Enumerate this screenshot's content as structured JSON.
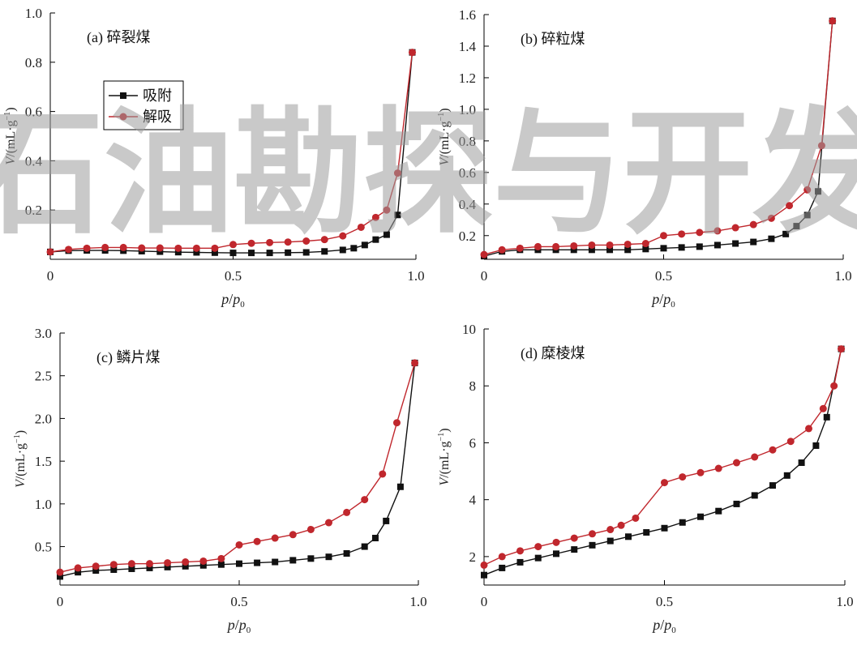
{
  "watermark": "石油勘探与开发",
  "panels": [
    {
      "id": "a",
      "title": "(a) 碎裂煤",
      "ylabel_main": "V/(mL·g",
      "ylabel_sup": "−1",
      "ylabel_end": ")",
      "xlabel_p": "p",
      "xlabel_slash": "/",
      "xlabel_p2": "p",
      "xlabel_sub": "0",
      "xlim": [
        0,
        1.0
      ],
      "ylim": [
        0,
        1.0
      ],
      "xticks": [
        {
          "v": 0,
          "label": "0"
        },
        {
          "v": 0.5,
          "label": "0.5"
        },
        {
          "v": 1.0,
          "label": "1.0"
        }
      ],
      "yticks": [
        {
          "v": 0.2,
          "label": "0.2"
        },
        {
          "v": 0.4,
          "label": "0.4"
        },
        {
          "v": 0.6,
          "label": "0.6"
        },
        {
          "v": 0.8,
          "label": "0.8"
        },
        {
          "v": 1.0,
          "label": "1.0"
        }
      ],
      "legend": [
        {
          "name": "吸附",
          "color": "#111111",
          "marker": "square"
        },
        {
          "name": "解吸",
          "color": "#c0272d",
          "marker": "circle"
        }
      ]
    },
    {
      "id": "b",
      "title": "(b) 碎粒煤",
      "ylabel_main": "V/(mL·g",
      "ylabel_sup": "−1",
      "ylabel_end": ")",
      "xlabel_p": "p",
      "xlabel_slash": "/",
      "xlabel_p2": "p",
      "xlabel_sub": "0",
      "xlim": [
        0,
        1.0
      ],
      "ylim": [
        0.05,
        1.6
      ],
      "xticks": [
        {
          "v": 0,
          "label": "0"
        },
        {
          "v": 0.5,
          "label": "0.5"
        },
        {
          "v": 1.0,
          "label": "1.0"
        }
      ],
      "yticks": [
        {
          "v": 0.2,
          "label": "0.2"
        },
        {
          "v": 0.4,
          "label": "0.4"
        },
        {
          "v": 0.6,
          "label": "0.6"
        },
        {
          "v": 0.8,
          "label": "0.8"
        },
        {
          "v": 1.0,
          "label": "1.0"
        },
        {
          "v": 1.2,
          "label": "1.2"
        },
        {
          "v": 1.4,
          "label": "1.4"
        },
        {
          "v": 1.6,
          "label": "1.6"
        }
      ]
    },
    {
      "id": "c",
      "title": "(c) 鳞片煤",
      "ylabel_main": "V/(mL·g",
      "ylabel_sup": "−1",
      "ylabel_end": ")",
      "xlabel_p": "p",
      "xlabel_slash": "/",
      "xlabel_p2": "p",
      "xlabel_sub": "0",
      "xlim": [
        0,
        1.0
      ],
      "ylim": [
        0.05,
        3.0
      ],
      "xticks": [
        {
          "v": 0,
          "label": "0"
        },
        {
          "v": 0.5,
          "label": "0.5"
        },
        {
          "v": 1.0,
          "label": "1.0"
        }
      ],
      "yticks": [
        {
          "v": 0.5,
          "label": "0.5"
        },
        {
          "v": 1.0,
          "label": "1.0"
        },
        {
          "v": 1.5,
          "label": "1.5"
        },
        {
          "v": 2.0,
          "label": "2.0"
        },
        {
          "v": 2.5,
          "label": "2.5"
        },
        {
          "v": 3.0,
          "label": "3.0"
        }
      ]
    },
    {
      "id": "d",
      "title": "(d) 糜棱煤",
      "ylabel_main": "V/(mL·g",
      "ylabel_sup": "−1",
      "ylabel_end": ")",
      "xlabel_p": "p",
      "xlabel_slash": "/",
      "xlabel_p2": "p",
      "xlabel_sub": "0",
      "xlim": [
        0,
        1.0
      ],
      "ylim": [
        1,
        10
      ],
      "xticks": [
        {
          "v": 0,
          "label": "0"
        },
        {
          "v": 0.5,
          "label": "0.5"
        },
        {
          "v": 1.0,
          "label": "1.0"
        }
      ],
      "yticks": [
        {
          "v": 2,
          "label": "2"
        },
        {
          "v": 4,
          "label": "4"
        },
        {
          "v": 6,
          "label": "6"
        },
        {
          "v": 8,
          "label": "8"
        },
        {
          "v": 10,
          "label": "10"
        }
      ]
    }
  ],
  "chart_data": [
    {
      "type": "line",
      "title": "(a) 碎裂煤",
      "xlabel": "p/p0",
      "ylabel": "V/(mL·g−1)",
      "xlim": [
        0,
        1.0
      ],
      "ylim": [
        0,
        1.0
      ],
      "legend": "upper-left",
      "series": [
        {
          "name": "吸附",
          "color": "#111111",
          "x": [
            0.0,
            0.05,
            0.1,
            0.15,
            0.2,
            0.25,
            0.3,
            0.35,
            0.4,
            0.45,
            0.5,
            0.55,
            0.6,
            0.65,
            0.7,
            0.75,
            0.8,
            0.83,
            0.86,
            0.89,
            0.92,
            0.95,
            0.99
          ],
          "y": [
            0.03,
            0.035,
            0.036,
            0.036,
            0.035,
            0.033,
            0.031,
            0.029,
            0.028,
            0.027,
            0.026,
            0.026,
            0.026,
            0.027,
            0.028,
            0.032,
            0.038,
            0.045,
            0.058,
            0.08,
            0.1,
            0.18,
            0.84
          ]
        },
        {
          "name": "解吸",
          "color": "#c0272d",
          "x": [
            0.0,
            0.05,
            0.1,
            0.15,
            0.2,
            0.25,
            0.3,
            0.35,
            0.4,
            0.45,
            0.5,
            0.55,
            0.6,
            0.65,
            0.7,
            0.75,
            0.8,
            0.85,
            0.89,
            0.92,
            0.95,
            0.99
          ],
          "y": [
            0.03,
            0.04,
            0.045,
            0.048,
            0.048,
            0.046,
            0.046,
            0.045,
            0.045,
            0.045,
            0.06,
            0.065,
            0.068,
            0.07,
            0.074,
            0.08,
            0.095,
            0.13,
            0.17,
            0.2,
            0.35,
            0.84
          ]
        }
      ]
    },
    {
      "type": "line",
      "title": "(b) 碎粒煤",
      "xlabel": "p/p0",
      "ylabel": "V/(mL·g−1)",
      "xlim": [
        0,
        1.0
      ],
      "ylim": [
        0.05,
        1.6
      ],
      "series": [
        {
          "name": "吸附",
          "color": "#111111",
          "x": [
            0.0,
            0.05,
            0.1,
            0.15,
            0.2,
            0.25,
            0.3,
            0.35,
            0.4,
            0.45,
            0.5,
            0.55,
            0.6,
            0.65,
            0.7,
            0.75,
            0.8,
            0.84,
            0.87,
            0.9,
            0.93,
            0.97
          ],
          "y": [
            0.07,
            0.1,
            0.11,
            0.11,
            0.11,
            0.11,
            0.11,
            0.11,
            0.11,
            0.115,
            0.12,
            0.125,
            0.13,
            0.14,
            0.15,
            0.16,
            0.18,
            0.21,
            0.26,
            0.33,
            0.48,
            1.56
          ]
        },
        {
          "name": "解吸",
          "color": "#c0272d",
          "x": [
            0.0,
            0.05,
            0.1,
            0.15,
            0.2,
            0.25,
            0.3,
            0.35,
            0.4,
            0.45,
            0.5,
            0.55,
            0.6,
            0.65,
            0.7,
            0.75,
            0.8,
            0.85,
            0.9,
            0.94,
            0.97
          ],
          "y": [
            0.08,
            0.11,
            0.12,
            0.13,
            0.13,
            0.135,
            0.14,
            0.14,
            0.145,
            0.15,
            0.2,
            0.21,
            0.22,
            0.23,
            0.25,
            0.27,
            0.31,
            0.39,
            0.49,
            0.77,
            1.56
          ]
        }
      ]
    },
    {
      "type": "line",
      "title": "(c) 鳞片煤",
      "xlabel": "p/p0",
      "ylabel": "V/(mL·g−1)",
      "xlim": [
        0,
        1.0
      ],
      "ylim": [
        0.05,
        3.0
      ],
      "series": [
        {
          "name": "吸附",
          "color": "#111111",
          "x": [
            0.0,
            0.05,
            0.1,
            0.15,
            0.2,
            0.25,
            0.3,
            0.35,
            0.4,
            0.45,
            0.5,
            0.55,
            0.6,
            0.65,
            0.7,
            0.75,
            0.8,
            0.85,
            0.88,
            0.91,
            0.95,
            0.99
          ],
          "y": [
            0.15,
            0.2,
            0.22,
            0.23,
            0.24,
            0.25,
            0.26,
            0.27,
            0.28,
            0.29,
            0.3,
            0.31,
            0.32,
            0.34,
            0.36,
            0.38,
            0.42,
            0.5,
            0.6,
            0.8,
            1.2,
            2.65
          ]
        },
        {
          "name": "解吸",
          "color": "#c0272d",
          "x": [
            0.0,
            0.05,
            0.1,
            0.15,
            0.2,
            0.25,
            0.3,
            0.35,
            0.4,
            0.45,
            0.5,
            0.55,
            0.6,
            0.65,
            0.7,
            0.75,
            0.8,
            0.85,
            0.9,
            0.94,
            0.99
          ],
          "y": [
            0.2,
            0.25,
            0.27,
            0.29,
            0.3,
            0.3,
            0.31,
            0.32,
            0.33,
            0.36,
            0.52,
            0.56,
            0.6,
            0.64,
            0.7,
            0.78,
            0.9,
            1.05,
            1.35,
            1.95,
            2.65
          ]
        }
      ]
    },
    {
      "type": "line",
      "title": "(d) 糜棱煤",
      "xlabel": "p/p0",
      "ylabel": "V/(mL·g−1)",
      "xlim": [
        0,
        1.0
      ],
      "ylim": [
        1,
        10
      ],
      "series": [
        {
          "name": "吸附",
          "color": "#111111",
          "x": [
            0.0,
            0.05,
            0.1,
            0.15,
            0.2,
            0.25,
            0.3,
            0.35,
            0.4,
            0.45,
            0.5,
            0.55,
            0.6,
            0.65,
            0.7,
            0.75,
            0.8,
            0.84,
            0.88,
            0.92,
            0.95,
            0.99
          ],
          "y": [
            1.35,
            1.6,
            1.8,
            1.95,
            2.1,
            2.25,
            2.4,
            2.55,
            2.7,
            2.85,
            3.0,
            3.2,
            3.4,
            3.6,
            3.85,
            4.15,
            4.5,
            4.85,
            5.3,
            5.9,
            6.9,
            9.3
          ]
        },
        {
          "name": "解吸",
          "color": "#c0272d",
          "x": [
            0.0,
            0.05,
            0.1,
            0.15,
            0.2,
            0.25,
            0.3,
            0.35,
            0.38,
            0.42,
            0.5,
            0.55,
            0.6,
            0.65,
            0.7,
            0.75,
            0.8,
            0.85,
            0.9,
            0.94,
            0.97,
            0.99
          ],
          "y": [
            1.7,
            2.0,
            2.2,
            2.35,
            2.5,
            2.65,
            2.8,
            2.95,
            3.1,
            3.35,
            4.6,
            4.8,
            4.95,
            5.1,
            5.3,
            5.5,
            5.75,
            6.05,
            6.5,
            7.2,
            8.0,
            9.3
          ]
        }
      ]
    }
  ]
}
